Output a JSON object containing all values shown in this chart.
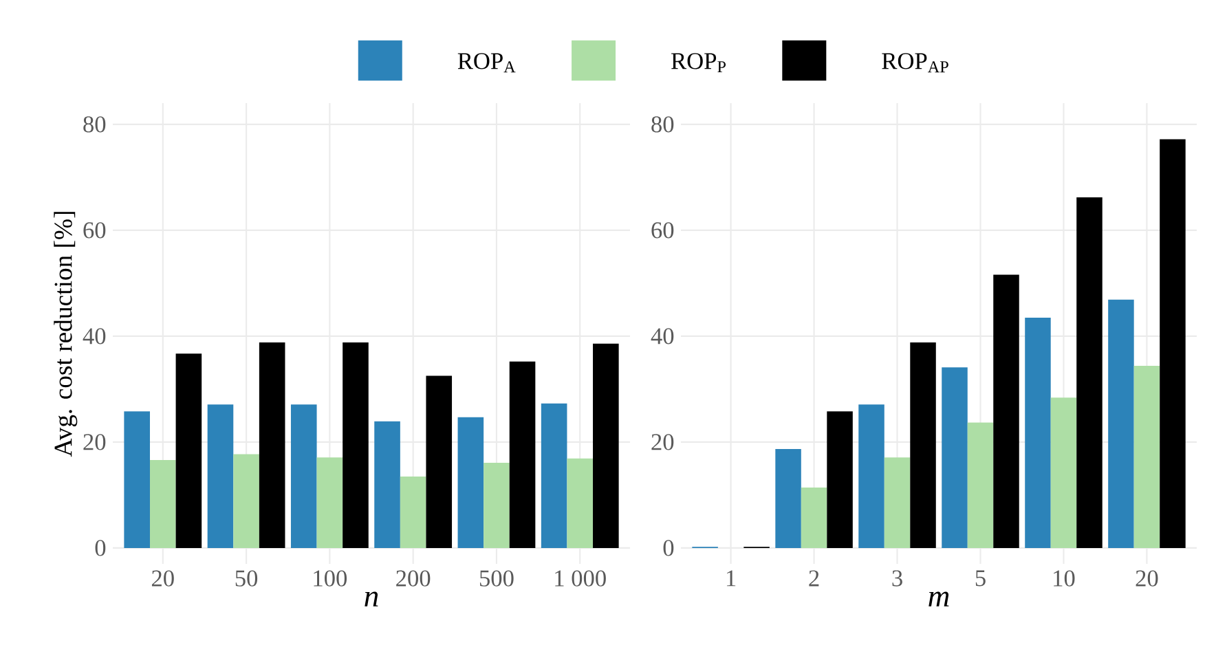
{
  "chart_data": [
    {
      "type": "bar",
      "ylabel": "Avg. cost reduction [%]",
      "xlabel": "n",
      "categories": [
        "20",
        "50",
        "100",
        "200",
        "500",
        "1 000"
      ],
      "series": [
        {
          "name": "ROP$_{A}$",
          "color": "#2c83b9",
          "values": [
            25.8,
            27.1,
            27.1,
            23.9,
            24.7,
            27.3
          ]
        },
        {
          "name": "ROP$_{P}$",
          "color": "#addea5",
          "values": [
            16.6,
            17.7,
            17.1,
            13.5,
            16.1,
            16.9
          ]
        },
        {
          "name": "ROP$_{AP}$",
          "color": "#000000",
          "values": [
            36.7,
            38.8,
            38.8,
            32.5,
            35.2,
            38.6
          ]
        }
      ],
      "ylim": [
        -3,
        84
      ],
      "yticks": [
        0,
        20,
        40,
        60,
        80
      ],
      "grid": true,
      "legend": "top"
    },
    {
      "type": "bar",
      "xlabel": "m",
      "categories": [
        "1",
        "2",
        "3",
        "5",
        "10",
        "20"
      ],
      "series": [
        {
          "color": "#2c83b9",
          "values": [
            0.2,
            18.7,
            27.1,
            34.1,
            43.5,
            46.9
          ]
        },
        {
          "color": "#addea5",
          "values": [
            null,
            11.4,
            17.1,
            23.7,
            28.4,
            34.4
          ]
        },
        {
          "color": "#000000",
          "values": [
            0.2,
            25.8,
            38.8,
            51.6,
            66.2,
            77.2
          ]
        }
      ],
      "ylim": [
        -3,
        84
      ],
      "yticks": [
        0,
        20,
        40,
        60,
        80
      ],
      "grid": true
    }
  ]
}
